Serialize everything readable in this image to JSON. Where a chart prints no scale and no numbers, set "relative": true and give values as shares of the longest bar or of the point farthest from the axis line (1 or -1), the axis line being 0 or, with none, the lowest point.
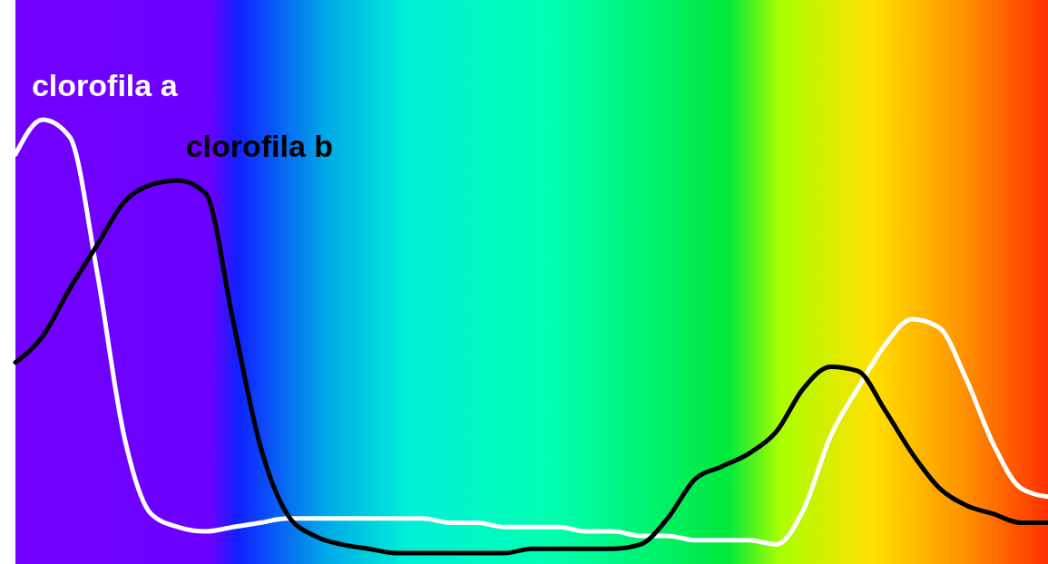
{
  "chart_data": {
    "type": "line",
    "relative": true,
    "categories": [
      null,
      null,
      null,
      null,
      null,
      null,
      null,
      null,
      null,
      null,
      null,
      null,
      null,
      null,
      null,
      null,
      null,
      null,
      null,
      null,
      null,
      null,
      null,
      null,
      null,
      null,
      null,
      null,
      null,
      null,
      null,
      null,
      null,
      null,
      null,
      null,
      null,
      null,
      null
    ],
    "series": [
      {
        "name": "clorofila a",
        "color": "#ffffff",
        "values": [
          0.92,
          1,
          0.96,
          0.65,
          0.27,
          0.09,
          0.06,
          0.05,
          0.06,
          0.07,
          0.08,
          0.08,
          0.08,
          0.08,
          0.08,
          0.08,
          0.07,
          0.07,
          0.06,
          0.06,
          0.06,
          0.05,
          0.05,
          0.04,
          0.04,
          0.03,
          0.03,
          0.03,
          0.02,
          0.1,
          0.27,
          0.38,
          0.48,
          0.54,
          0.52,
          0.4,
          0.25,
          0.15,
          0.13
        ]
      },
      {
        "name": "clorofila b",
        "color": "#000000",
        "values": [
          0.44,
          0.5,
          0.61,
          0.71,
          0.81,
          0.85,
          0.86,
          0.83,
          0.54,
          0.25,
          0.09,
          0.04,
          0.02,
          0.01,
          0,
          0,
          0,
          0,
          0,
          0.01,
          0.01,
          0.01,
          0.01,
          0.02,
          0.08,
          0.17,
          0.2,
          0.23,
          0.28,
          0.38,
          0.43,
          0.42,
          0.33,
          0.23,
          0.15,
          0.11,
          0.09,
          0.07,
          0.07
        ]
      }
    ]
  }
}
